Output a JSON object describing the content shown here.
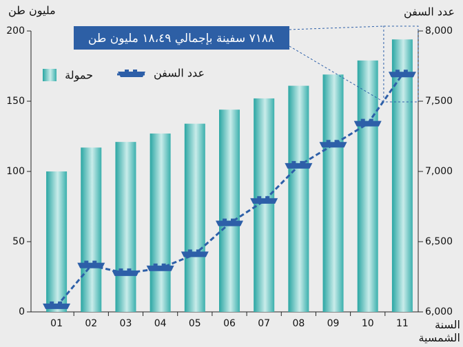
{
  "chart_data": {
    "type": "bar",
    "ylabel": "مليون طن",
    "y2label": "عدد السفن",
    "xlabel": "السنة الشمسية",
    "annotation": "٧١٨٨ سفينة بإجمالي ١٨،٤٩ مليون طن",
    "categories": [
      "01",
      "02",
      "03",
      "04",
      "05",
      "06",
      "07",
      "08",
      "09",
      "10",
      "11"
    ],
    "series": [
      {
        "name": "حمولة",
        "type": "bar",
        "color": "#5cc4bf",
        "values": [
          100,
          117,
          121,
          127,
          134,
          144,
          152,
          161,
          169,
          179,
          194
        ]
      },
      {
        "name": "عدد السفن",
        "type": "line",
        "axis": "y2",
        "color": "#2d5fa8",
        "values": [
          6040,
          6330,
          6275,
          6310,
          6410,
          6630,
          6790,
          7040,
          7190,
          7340,
          7690
        ]
      }
    ],
    "ylim": [
      0,
      200
    ],
    "yticks": [
      0,
      50,
      100,
      150,
      200
    ],
    "y2lim": [
      6000,
      8000
    ],
    "y2ticks": [
      {
        "value": 6000,
        "label": "6,000"
      },
      {
        "value": 6500,
        "label": "6,500"
      },
      {
        "value": 7000,
        "label": "7,000"
      },
      {
        "value": 7500,
        "label": "7,500"
      },
      {
        "value": 8000,
        "label": "8,000"
      }
    ]
  }
}
